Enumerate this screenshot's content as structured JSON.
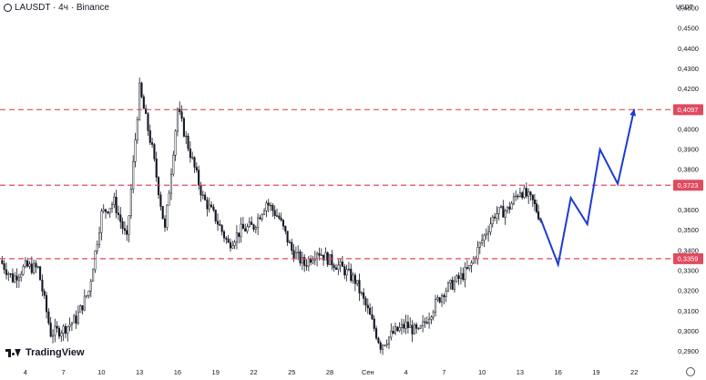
{
  "header": {
    "symbol_label": "LAUSDT · 4ч · Binance"
  },
  "axis": {
    "currency": "USDT"
  },
  "branding": {
    "logo_text": "TradingView",
    "logo_icon": "tradingview-logo-icon"
  },
  "settings": {
    "icon": "gear-icon"
  },
  "chart_data": {
    "type": "candlestick",
    "y_ticks": [
      "0,4600",
      "0,4500",
      "0,4400",
      "0,4300",
      "0,4200",
      "0,4000",
      "0,3900",
      "0,3800",
      "0,3600",
      "0,3500",
      "0,3400",
      "0,3300",
      "0,3200",
      "0,3100",
      "0,3000",
      "0,2900"
    ],
    "y_tick_values": [
      0.46,
      0.45,
      0.44,
      0.43,
      0.42,
      0.4,
      0.39,
      0.38,
      0.36,
      0.35,
      0.34,
      0.33,
      0.32,
      0.31,
      0.3,
      0.29
    ],
    "ylim": [
      0.2835,
      0.464
    ],
    "x_ticks": [
      "4",
      "7",
      "10",
      "13",
      "16",
      "19",
      "22",
      "25",
      "28",
      "Сен",
      "4",
      "7",
      "10",
      "13",
      "16",
      "19",
      "22"
    ],
    "x_tick_pos": [
      0,
      3,
      6,
      9,
      12,
      15,
      18,
      21,
      24,
      27,
      30,
      33,
      36,
      39,
      42,
      45,
      48
    ],
    "xlim": [
      -2,
      51
    ],
    "levels": [
      {
        "value": 0.4097,
        "label": "0,4097",
        "color": "#e04a5f"
      },
      {
        "value": 0.3723,
        "label": "0,3723",
        "color": "#e04a5f"
      },
      {
        "value": 0.3359,
        "label": "0,3359",
        "color": "#e04a5f"
      }
    ],
    "daily_closes": [
      [
        -2,
        0.335
      ],
      [
        -1,
        0.326
      ],
      [
        0,
        0.332
      ],
      [
        1,
        0.331
      ],
      [
        2,
        0.299
      ],
      [
        3,
        0.301
      ],
      [
        4,
        0.306
      ],
      [
        5,
        0.32
      ],
      [
        6,
        0.358
      ],
      [
        7,
        0.364
      ],
      [
        8,
        0.345
      ],
      [
        9,
        0.42
      ],
      [
        10,
        0.39
      ],
      [
        11,
        0.35
      ],
      [
        12,
        0.41
      ],
      [
        13,
        0.388
      ],
      [
        14,
        0.366
      ],
      [
        15,
        0.356
      ],
      [
        16,
        0.343
      ],
      [
        17,
        0.35
      ],
      [
        18,
        0.352
      ],
      [
        19,
        0.364
      ],
      [
        20,
        0.356
      ],
      [
        21,
        0.34
      ],
      [
        22,
        0.333
      ],
      [
        23,
        0.34
      ],
      [
        24,
        0.335
      ],
      [
        25,
        0.331
      ],
      [
        26,
        0.325
      ],
      [
        27,
        0.31
      ],
      [
        28,
        0.293
      ],
      [
        29,
        0.299
      ],
      [
        30,
        0.303
      ],
      [
        31,
        0.299
      ],
      [
        32,
        0.31
      ],
      [
        33,
        0.32
      ],
      [
        34,
        0.325
      ],
      [
        35,
        0.331
      ],
      [
        36,
        0.345
      ],
      [
        37,
        0.358
      ],
      [
        38,
        0.36
      ],
      [
        39,
        0.37
      ],
      [
        40,
        0.364
      ],
      [
        40.6,
        0.356
      ]
    ],
    "projection": [
      [
        40.6,
        0.356
      ],
      [
        42,
        0.333
      ],
      [
        43,
        0.366
      ],
      [
        44.3,
        0.353
      ],
      [
        45.3,
        0.39
      ],
      [
        46.7,
        0.373
      ],
      [
        48,
        0.41
      ]
    ],
    "colors": {
      "candles": "#131722",
      "projection": "#1d3bd6",
      "levels": "#e04a5f"
    }
  }
}
